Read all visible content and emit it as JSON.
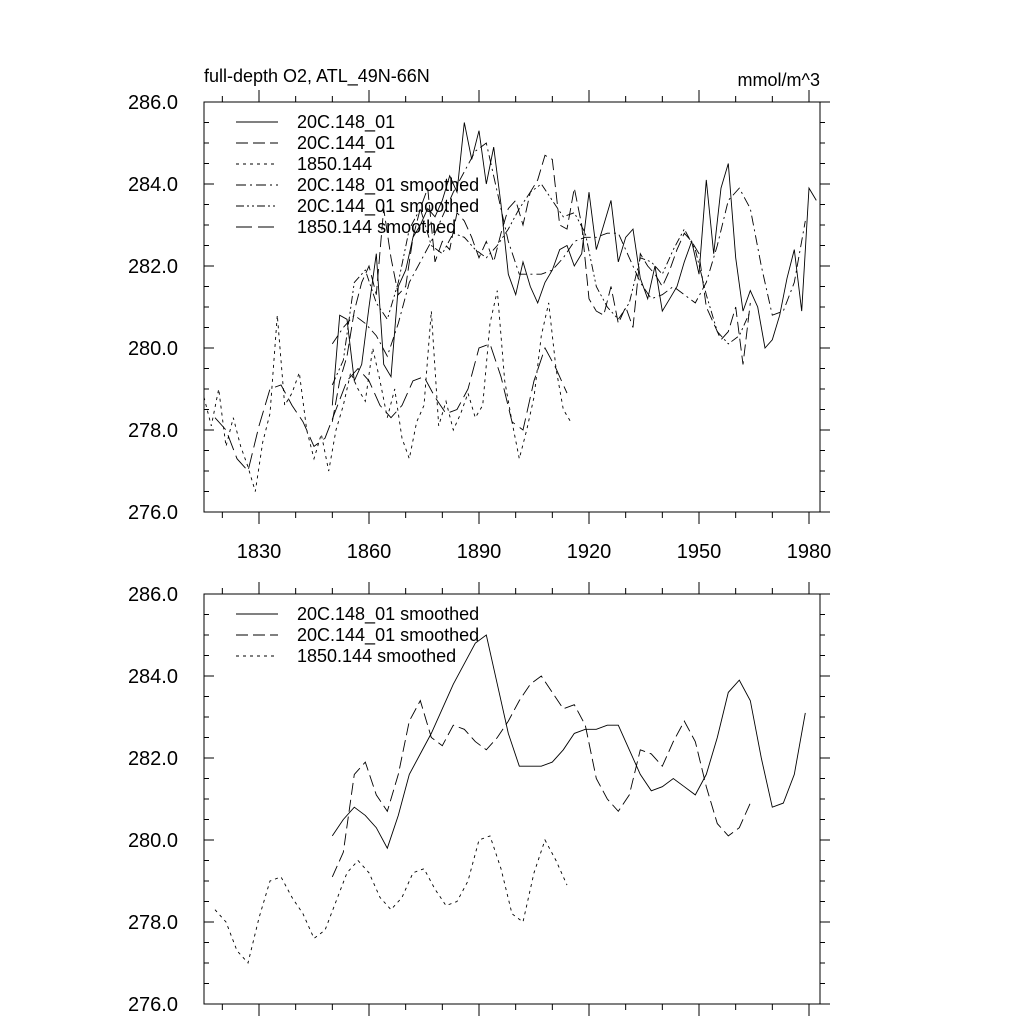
{
  "chart_data": [
    {
      "type": "line",
      "title": "full-depth O2, ATL_49N-66N",
      "units": "mmol/m^3",
      "xlabel": "",
      "ylabel": "",
      "xlim": [
        1815,
        1983
      ],
      "ylim": [
        276.0,
        286.0
      ],
      "x_ticks": [
        1830,
        1860,
        1890,
        1920,
        1950,
        1980
      ],
      "x_tick_labels": [
        "1830",
        "1860",
        "1890",
        "1920",
        "1950",
        "1980"
      ],
      "y_ticks": [
        276,
        278,
        280,
        282,
        284,
        286
      ],
      "y_tick_labels": [
        "276.0",
        "278.0",
        "280.0",
        "282.0",
        "284.0",
        "286.0"
      ],
      "legend_position": "top-left",
      "series": [
        {
          "name": "20C.148_01",
          "style": "solid",
          "x": [
            1850,
            1852,
            1854,
            1856,
            1858,
            1860,
            1862,
            1864,
            1866,
            1868,
            1870,
            1872,
            1874,
            1876,
            1878,
            1880,
            1882,
            1884,
            1886,
            1888,
            1890,
            1892,
            1894,
            1896,
            1898,
            1900,
            1902,
            1904,
            1906,
            1908,
            1910,
            1912,
            1914,
            1916,
            1918,
            1920,
            1922,
            1924,
            1926,
            1928,
            1930,
            1932,
            1934,
            1936,
            1938,
            1940,
            1942,
            1944,
            1946,
            1948,
            1950,
            1952,
            1954,
            1956,
            1958,
            1960,
            1962,
            1964,
            1966,
            1968,
            1970,
            1972,
            1974,
            1976,
            1978,
            1980,
            1982
          ],
          "values": [
            278.6,
            280.8,
            280.7,
            279.2,
            279.6,
            281.0,
            282.3,
            279.6,
            279.3,
            281.5,
            281.9,
            282.7,
            283.0,
            283.4,
            283.2,
            283.6,
            284.2,
            283.8,
            285.5,
            284.6,
            285.3,
            284.0,
            284.9,
            283.5,
            281.8,
            281.3,
            282.1,
            281.5,
            281.1,
            281.6,
            281.9,
            282.4,
            282.5,
            282.0,
            282.3,
            283.8,
            282.4,
            283.0,
            283.6,
            282.1,
            282.7,
            282.9,
            281.7,
            281.2,
            282.0,
            280.9,
            281.2,
            281.5,
            282.1,
            282.6,
            281.8,
            284.1,
            282.3,
            283.9,
            284.5,
            282.2,
            280.9,
            281.4,
            281.0,
            280.0,
            280.2,
            280.8,
            281.7,
            282.4,
            280.9,
            283.9,
            283.6
          ]
        },
        {
          "name": "20C.144_01",
          "style": "dashed",
          "x": [
            1850,
            1852,
            1854,
            1856,
            1858,
            1860,
            1862,
            1864,
            1866,
            1868,
            1870,
            1872,
            1874,
            1876,
            1878,
            1880,
            1882,
            1884,
            1886,
            1888,
            1890,
            1892,
            1894,
            1896,
            1898,
            1900,
            1902,
            1904,
            1906,
            1908,
            1910,
            1912,
            1914,
            1916,
            1918,
            1920,
            1922,
            1924,
            1926,
            1928,
            1930,
            1932,
            1934,
            1936,
            1938,
            1940,
            1942,
            1944,
            1946,
            1948,
            1950,
            1952,
            1954,
            1956,
            1958,
            1960,
            1962,
            1964
          ],
          "values": [
            278.2,
            279.2,
            279.8,
            280.9,
            281.6,
            282.0,
            281.3,
            283.4,
            282.2,
            281.3,
            281.5,
            282.7,
            283.4,
            283.9,
            282.1,
            282.6,
            282.4,
            283.3,
            283.1,
            282.7,
            282.2,
            282.6,
            282.1,
            282.8,
            283.4,
            283.6,
            283.0,
            283.8,
            284.1,
            284.7,
            284.6,
            283.0,
            282.9,
            283.9,
            283.0,
            281.2,
            280.9,
            280.8,
            281.5,
            280.6,
            281.0,
            280.5,
            282.3,
            282.0,
            281.8,
            281.5,
            281.9,
            282.4,
            282.8,
            282.6,
            282.3,
            281.0,
            280.6,
            280.2,
            280.4,
            281.0,
            279.6,
            281.1
          ]
        },
        {
          "name": "1850.144",
          "style": "dotted",
          "x": [
            1815,
            1817,
            1819,
            1821,
            1823,
            1825,
            1827,
            1829,
            1831,
            1833,
            1835,
            1837,
            1839,
            1841,
            1843,
            1845,
            1847,
            1849,
            1851,
            1853,
            1855,
            1857,
            1859,
            1861,
            1863,
            1865,
            1867,
            1869,
            1871,
            1873,
            1875,
            1877,
            1879,
            1881,
            1883,
            1885,
            1887,
            1889,
            1891,
            1893,
            1895,
            1897,
            1899,
            1901,
            1903,
            1905,
            1907,
            1909,
            1911,
            1913,
            1915
          ],
          "values": [
            278.8,
            278.1,
            279.0,
            277.6,
            278.3,
            277.6,
            277.1,
            276.5,
            277.7,
            278.4,
            280.8,
            278.6,
            278.9,
            279.4,
            278.0,
            277.3,
            277.9,
            277.0,
            278.0,
            278.6,
            279.4,
            279.0,
            278.7,
            280.0,
            279.2,
            278.3,
            279.0,
            277.8,
            277.3,
            278.2,
            278.6,
            280.9,
            278.1,
            278.7,
            278.0,
            278.4,
            278.9,
            278.3,
            278.6,
            280.6,
            281.4,
            279.2,
            278.2,
            277.3,
            278.0,
            278.8,
            280.3,
            281.1,
            279.5,
            278.5,
            278.2
          ]
        },
        {
          "name": "20C.148_01 smoothed",
          "style": "dash-dot",
          "x": [
            1850,
            1853,
            1856,
            1859,
            1862,
            1865,
            1868,
            1871,
            1874,
            1877,
            1880,
            1883,
            1886,
            1889,
            1892,
            1895,
            1898,
            1901,
            1904,
            1907,
            1910,
            1913,
            1916,
            1919,
            1922,
            1925,
            1928,
            1931,
            1934,
            1937,
            1940,
            1943,
            1946,
            1949,
            1952,
            1955,
            1958,
            1961,
            1964,
            1967,
            1970,
            1973,
            1976,
            1979
          ],
          "values": [
            280.1,
            280.5,
            280.8,
            280.6,
            280.3,
            279.8,
            280.6,
            281.6,
            282.1,
            282.6,
            283.2,
            283.8,
            284.3,
            284.8,
            285.0,
            283.8,
            282.6,
            281.8,
            281.8,
            281.8,
            281.9,
            282.2,
            282.6,
            282.7,
            282.7,
            282.8,
            282.8,
            282.2,
            281.6,
            281.2,
            281.3,
            281.5,
            281.3,
            281.1,
            281.6,
            282.5,
            283.6,
            283.9,
            283.4,
            282.0,
            280.8,
            280.9,
            281.6,
            283.1
          ]
        },
        {
          "name": "20C.144_01 smoothed",
          "style": "dash-dot-dot",
          "x": [
            1850,
            1853,
            1856,
            1859,
            1862,
            1865,
            1868,
            1871,
            1874,
            1877,
            1880,
            1883,
            1886,
            1889,
            1892,
            1895,
            1898,
            1901,
            1904,
            1907,
            1910,
            1913,
            1916,
            1919,
            1922,
            1925,
            1928,
            1931,
            1934,
            1937,
            1940,
            1943,
            1946,
            1949,
            1952,
            1955,
            1958,
            1961,
            1964
          ],
          "values": [
            279.1,
            279.7,
            281.6,
            281.9,
            281.1,
            280.7,
            281.6,
            282.9,
            283.4,
            282.5,
            282.3,
            282.8,
            282.7,
            282.4,
            282.2,
            282.5,
            282.9,
            283.4,
            283.8,
            284.0,
            283.6,
            283.2,
            283.3,
            282.8,
            281.5,
            281.0,
            280.7,
            281.1,
            282.2,
            282.1,
            281.8,
            282.4,
            282.9,
            282.4,
            281.3,
            280.4,
            280.1,
            280.3,
            280.9
          ]
        },
        {
          "name": "1850.144 smoothed",
          "style": "long-dash",
          "x": [
            1818,
            1821,
            1824,
            1827,
            1830,
            1833,
            1836,
            1839,
            1842,
            1845,
            1848,
            1851,
            1854,
            1857,
            1860,
            1863,
            1866,
            1869,
            1872,
            1875,
            1878,
            1881,
            1884,
            1887,
            1890,
            1893,
            1896,
            1899,
            1902,
            1905,
            1908,
            1911,
            1914
          ],
          "values": [
            278.3,
            278.0,
            277.3,
            277.0,
            278.1,
            279.0,
            279.1,
            278.6,
            278.2,
            277.6,
            277.8,
            278.5,
            279.2,
            279.5,
            279.2,
            278.6,
            278.3,
            278.6,
            279.2,
            279.3,
            278.8,
            278.4,
            278.5,
            279.0,
            280.0,
            280.1,
            279.3,
            278.2,
            278.0,
            279.2,
            280.0,
            279.5,
            278.9
          ]
        }
      ]
    },
    {
      "type": "line",
      "title": "",
      "xlabel": "",
      "ylabel": "",
      "xlim": [
        1815,
        1983
      ],
      "ylim": [
        276.0,
        286.0
      ],
      "x_ticks": [
        1830,
        1860,
        1890,
        1920,
        1950,
        1980
      ],
      "y_ticks": [
        276,
        278,
        280,
        282,
        284,
        286
      ],
      "y_tick_labels": [
        "276.0",
        "278.0",
        "280.0",
        "282.0",
        "284.0",
        "286.0"
      ],
      "legend_position": "top-left",
      "series": [
        {
          "name": "20C.148_01 smoothed",
          "style": "solid",
          "x": [
            1850,
            1853,
            1856,
            1859,
            1862,
            1865,
            1868,
            1871,
            1874,
            1877,
            1880,
            1883,
            1886,
            1889,
            1892,
            1895,
            1898,
            1901,
            1904,
            1907,
            1910,
            1913,
            1916,
            1919,
            1922,
            1925,
            1928,
            1931,
            1934,
            1937,
            1940,
            1943,
            1946,
            1949,
            1952,
            1955,
            1958,
            1961,
            1964,
            1967,
            1970,
            1973,
            1976,
            1979
          ],
          "values": [
            280.1,
            280.5,
            280.8,
            280.6,
            280.3,
            279.8,
            280.6,
            281.6,
            282.1,
            282.6,
            283.2,
            283.8,
            284.3,
            284.8,
            285.0,
            283.8,
            282.6,
            281.8,
            281.8,
            281.8,
            281.9,
            282.2,
            282.6,
            282.7,
            282.7,
            282.8,
            282.8,
            282.2,
            281.6,
            281.2,
            281.3,
            281.5,
            281.3,
            281.1,
            281.6,
            282.5,
            283.6,
            283.9,
            283.4,
            282.0,
            280.8,
            280.9,
            281.6,
            283.1
          ]
        },
        {
          "name": "20C.144_01 smoothed",
          "style": "dashed",
          "x": [
            1850,
            1853,
            1856,
            1859,
            1862,
            1865,
            1868,
            1871,
            1874,
            1877,
            1880,
            1883,
            1886,
            1889,
            1892,
            1895,
            1898,
            1901,
            1904,
            1907,
            1910,
            1913,
            1916,
            1919,
            1922,
            1925,
            1928,
            1931,
            1934,
            1937,
            1940,
            1943,
            1946,
            1949,
            1952,
            1955,
            1958,
            1961,
            1964
          ],
          "values": [
            279.1,
            279.7,
            281.6,
            281.9,
            281.1,
            280.7,
            281.6,
            282.9,
            283.4,
            282.5,
            282.3,
            282.8,
            282.7,
            282.4,
            282.2,
            282.5,
            282.9,
            283.4,
            283.8,
            284.0,
            283.6,
            283.2,
            283.3,
            282.8,
            281.5,
            281.0,
            280.7,
            281.1,
            282.2,
            282.1,
            281.8,
            282.4,
            282.9,
            282.4,
            281.3,
            280.4,
            280.1,
            280.3,
            280.9
          ]
        },
        {
          "name": "1850.144 smoothed",
          "style": "dotted",
          "x": [
            1818,
            1821,
            1824,
            1827,
            1830,
            1833,
            1836,
            1839,
            1842,
            1845,
            1848,
            1851,
            1854,
            1857,
            1860,
            1863,
            1866,
            1869,
            1872,
            1875,
            1878,
            1881,
            1884,
            1887,
            1890,
            1893,
            1896,
            1899,
            1902,
            1905,
            1908,
            1911,
            1914
          ],
          "values": [
            278.3,
            278.0,
            277.3,
            277.0,
            278.1,
            279.0,
            279.1,
            278.6,
            278.2,
            277.6,
            277.8,
            278.5,
            279.2,
            279.5,
            279.2,
            278.6,
            278.3,
            278.6,
            279.2,
            279.3,
            278.8,
            278.4,
            278.5,
            279.0,
            280.0,
            280.1,
            279.3,
            278.2,
            278.0,
            279.2,
            280.0,
            279.5,
            278.9
          ]
        }
      ]
    }
  ]
}
